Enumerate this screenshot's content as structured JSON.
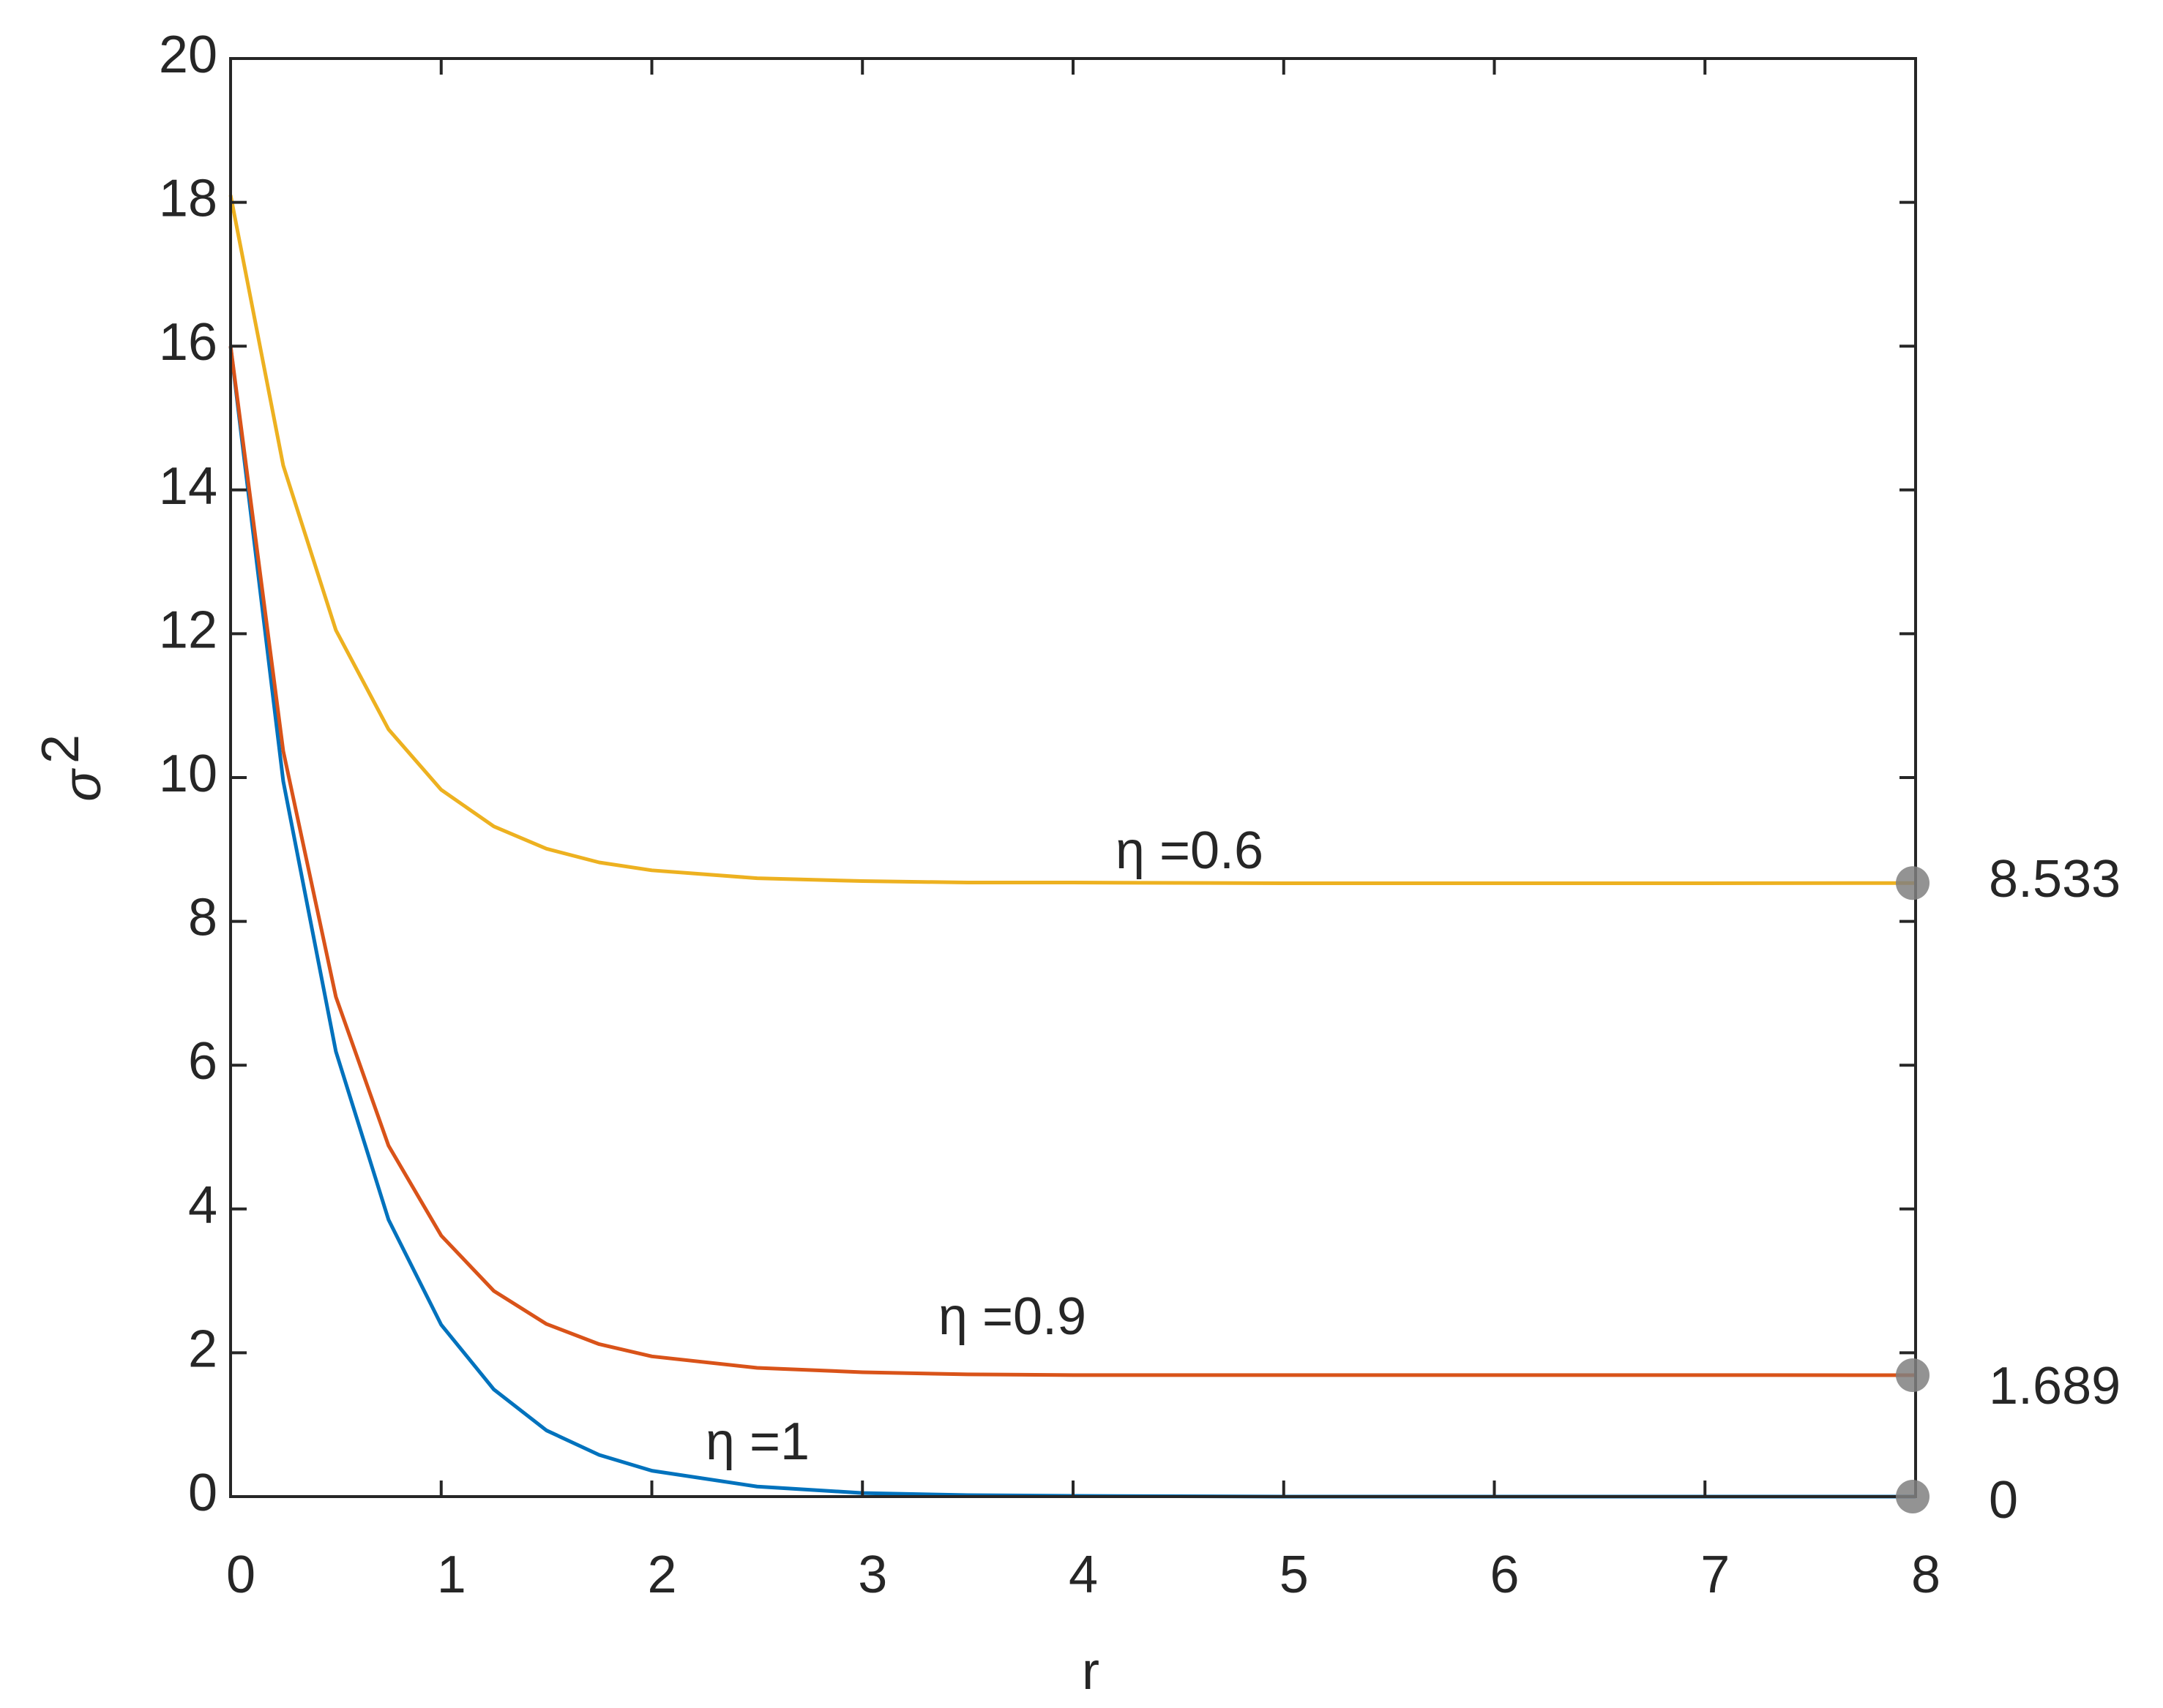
{
  "chart_data": {
    "type": "line",
    "xlabel": "r",
    "ylabel": "σ",
    "ylabel_exponent": "2",
    "x": [
      0,
      0.25,
      0.5,
      0.75,
      1,
      1.25,
      1.5,
      1.75,
      2,
      2.5,
      3,
      3.5,
      4,
      5,
      6,
      7,
      8
    ],
    "series": [
      {
        "name": "η =1",
        "color": "#0072BD",
        "values": [
          16,
          9.95,
          6.19,
          3.85,
          2.39,
          1.49,
          0.92,
          0.58,
          0.36,
          0.14,
          0.05,
          0.02,
          0.01,
          0,
          0,
          0,
          0
        ]
      },
      {
        "name": "η =0.9",
        "color": "#D95319",
        "values": [
          16,
          10.37,
          6.95,
          4.88,
          3.63,
          2.86,
          2.4,
          2.12,
          1.95,
          1.79,
          1.73,
          1.7,
          1.69,
          1.69,
          1.69,
          1.69,
          1.689
        ]
      },
      {
        "name": "η =0.6",
        "color": "#EDB120",
        "values": [
          18.1,
          14.34,
          12.05,
          10.67,
          9.83,
          9.32,
          9.01,
          8.82,
          8.71,
          8.6,
          8.56,
          8.54,
          8.54,
          8.53,
          8.53,
          8.53,
          8.533
        ]
      }
    ],
    "end_points": [
      {
        "x": 8,
        "y": 8.533,
        "label": "8.533"
      },
      {
        "x": 8,
        "y": 1.689,
        "label": "1.689"
      },
      {
        "x": 8,
        "y": 0,
        "label": "0"
      }
    ],
    "marker_color": "#808080",
    "xlim": [
      0,
      8
    ],
    "ylim": [
      0,
      20
    ],
    "xticks": [
      0,
      1,
      2,
      3,
      4,
      5,
      6,
      7,
      8
    ],
    "yticks": [
      0,
      2,
      4,
      6,
      8,
      10,
      12,
      14,
      16,
      18,
      20
    ]
  }
}
